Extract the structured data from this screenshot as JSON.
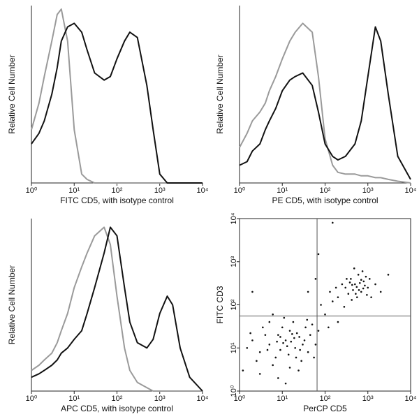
{
  "chart_data": [
    {
      "type": "line",
      "xlabel": "FITC CD5, with isotype control",
      "ylabel": "Relative Cell Number",
      "log_x": true,
      "xlim": [
        1,
        10000
      ],
      "xticks": [
        {
          "value": 1,
          "label": "10⁰"
        },
        {
          "value": 10,
          "label": "10¹"
        },
        {
          "value": 100,
          "label": "10²"
        },
        {
          "value": 1000,
          "label": "10³"
        },
        {
          "value": 10000,
          "label": "10⁴"
        }
      ],
      "ylim": [
        0,
        100
      ],
      "x": [
        1,
        1.5,
        2,
        3,
        4,
        5,
        7,
        10,
        15,
        20,
        30,
        50,
        70,
        100,
        150,
        200,
        300,
        500,
        700,
        1000,
        1500,
        2000,
        3000,
        5000,
        10000
      ],
      "series": [
        {
          "color": "#9a9a9a",
          "values": [
            30,
            45,
            60,
            80,
            95,
            98,
            80,
            30,
            5,
            2,
            0,
            0,
            0,
            0,
            0,
            0,
            0,
            0,
            0,
            0,
            0,
            0,
            0,
            0,
            0
          ]
        },
        {
          "color": "#111111",
          "values": [
            22,
            28,
            35,
            50,
            65,
            80,
            88,
            90,
            85,
            75,
            62,
            58,
            60,
            70,
            80,
            85,
            82,
            55,
            30,
            5,
            0,
            0,
            0,
            0,
            0
          ]
        }
      ]
    },
    {
      "type": "line",
      "xlabel": "PE CD5, with isotype control",
      "ylabel": "Relative Cell Number",
      "log_x": true,
      "xlim": [
        1,
        10000
      ],
      "xticks": [
        {
          "value": 1,
          "label": "10⁰"
        },
        {
          "value": 10,
          "label": "10¹"
        },
        {
          "value": 100,
          "label": "10²"
        },
        {
          "value": 1000,
          "label": "10³"
        },
        {
          "value": 10000,
          "label": "10⁴"
        }
      ],
      "ylim": [
        0,
        100
      ],
      "x": [
        1,
        1.5,
        2,
        3,
        4,
        5,
        7,
        10,
        15,
        20,
        30,
        50,
        70,
        100,
        150,
        200,
        300,
        500,
        700,
        1000,
        1500,
        2000,
        3000,
        5000,
        10000
      ],
      "series": [
        {
          "color": "#9a9a9a",
          "values": [
            20,
            28,
            35,
            40,
            45,
            52,
            60,
            70,
            80,
            85,
            90,
            85,
            60,
            25,
            10,
            6,
            5,
            5,
            4,
            4,
            3,
            3,
            2,
            1,
            0
          ]
        },
        {
          "color": "#111111",
          "values": [
            10,
            12,
            18,
            22,
            30,
            35,
            42,
            52,
            58,
            60,
            62,
            55,
            40,
            22,
            15,
            13,
            15,
            22,
            35,
            60,
            88,
            80,
            50,
            15,
            2
          ]
        }
      ]
    },
    {
      "type": "line",
      "xlabel": "APC CD5, with isotype control",
      "ylabel": "Relative Cell Number",
      "log_x": true,
      "xlim": [
        1,
        10000
      ],
      "xticks": [
        {
          "value": 1,
          "label": "10⁰"
        },
        {
          "value": 10,
          "label": "10¹"
        },
        {
          "value": 100,
          "label": "10²"
        },
        {
          "value": 1000,
          "label": "10³"
        },
        {
          "value": 10000,
          "label": "10⁴"
        }
      ],
      "ylim": [
        0,
        100
      ],
      "x": [
        1,
        1.5,
        2,
        3,
        4,
        5,
        7,
        10,
        15,
        20,
        30,
        50,
        70,
        100,
        150,
        200,
        300,
        500,
        700,
        1000,
        1500,
        2000,
        3000,
        5000,
        10000
      ],
      "series": [
        {
          "color": "#9a9a9a",
          "values": [
            12,
            15,
            18,
            22,
            28,
            35,
            45,
            60,
            72,
            80,
            90,
            95,
            85,
            55,
            25,
            12,
            5,
            2,
            0,
            0,
            0,
            0,
            0,
            0,
            0
          ]
        },
        {
          "color": "#111111",
          "values": [
            8,
            10,
            12,
            15,
            18,
            22,
            25,
            30,
            35,
            45,
            60,
            80,
            95,
            90,
            60,
            40,
            28,
            25,
            30,
            45,
            55,
            50,
            25,
            8,
            0
          ]
        }
      ]
    },
    {
      "type": "scatter",
      "xlabel": "PerCP CD5",
      "ylabel": "FITC CD3",
      "log_x": true,
      "log_y": true,
      "color": "#111111",
      "xlim": [
        1,
        10000
      ],
      "xticks": [
        {
          "value": 1,
          "label": "10⁰"
        },
        {
          "value": 10,
          "label": "10¹"
        },
        {
          "value": 100,
          "label": "10²"
        },
        {
          "value": 1000,
          "label": "10³"
        },
        {
          "value": 10000,
          "label": "10⁴"
        }
      ],
      "ylim": [
        1,
        10000
      ],
      "yticks": [
        {
          "value": 1,
          "label": "10⁰"
        },
        {
          "value": 10,
          "label": "10¹"
        },
        {
          "value": 100,
          "label": "10²"
        },
        {
          "value": 1000,
          "label": "10³"
        },
        {
          "value": 10000,
          "label": "10⁴"
        }
      ],
      "quadrant_lines": {
        "x": 65,
        "y": 55
      },
      "x": [
        3,
        5,
        8,
        12,
        20,
        15,
        7,
        10,
        25,
        30,
        4,
        6,
        9,
        14,
        18,
        22,
        35,
        40,
        2,
        2.5,
        11,
        13,
        16,
        19,
        28,
        45,
        50,
        3.5,
        1.5,
        1.2,
        6,
        8,
        12,
        24,
        60,
        70,
        5,
        9,
        17,
        26,
        33,
        4.5,
        7.5,
        10.5,
        21,
        1.8,
        38,
        55,
        3,
        15,
        300,
        500,
        700,
        400,
        800,
        200,
        1000,
        600,
        350,
        450,
        900,
        250,
        1200,
        550,
        650,
        150,
        1500,
        750,
        320,
        420,
        520,
        850,
        380,
        620,
        2000,
        180,
        280,
        950,
        480,
        700,
        1100,
        130,
        560,
        430,
        780,
        80,
        100,
        60,
        200,
        3000,
        40,
        120,
        2,
        150,
        70
      ],
      "y": [
        8,
        12,
        20,
        15,
        10,
        25,
        6,
        30,
        18,
        12,
        20,
        4,
        9,
        7,
        40,
        22,
        30,
        8,
        15,
        5,
        50,
        11,
        14,
        17,
        5,
        20,
        35,
        30,
        10,
        3,
        60,
        2,
        1.5,
        3,
        12,
        25,
        40,
        18,
        21,
        9,
        15,
        9,
        14,
        13,
        6,
        22,
        45,
        6,
        2.5,
        3.5,
        250,
        300,
        200,
        400,
        350,
        150,
        250,
        500,
        180,
        220,
        450,
        300,
        150,
        260,
        320,
        120,
        300,
        600,
        400,
        130,
        180,
        280,
        330,
        220,
        200,
        250,
        90,
        170,
        700,
        380,
        400,
        200,
        150,
        290,
        240,
        100,
        60,
        400,
        40,
        500,
        200,
        30,
        200,
        8000,
        1500
      ]
    }
  ]
}
